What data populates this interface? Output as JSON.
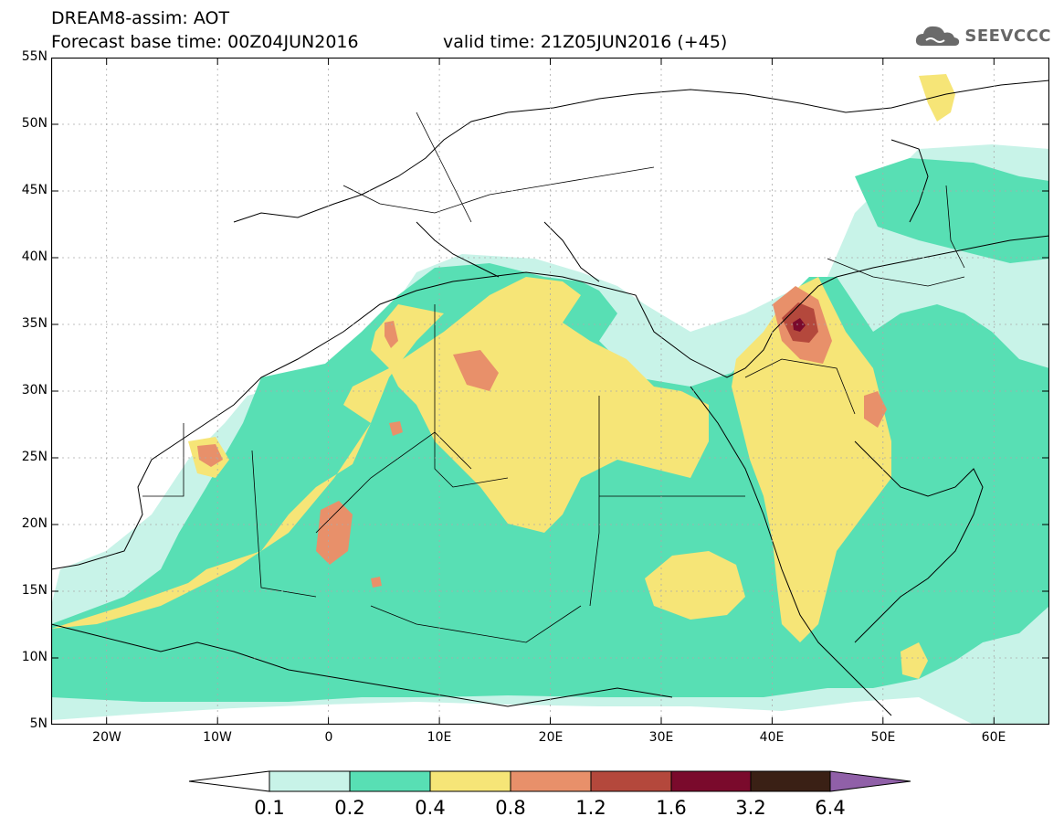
{
  "header": {
    "title_line1": "DREAM8-assim: AOT",
    "title_line2": "Forecast base time: 00Z04JUN2016",
    "valid_time": "valid time: 21Z05JUN2016 (+45)"
  },
  "logo": {
    "text": "SEEVCCC",
    "icon": "cloud-logo-icon"
  },
  "map": {
    "variable": "AOT",
    "lat_labels": [
      "55N",
      "50N",
      "45N",
      "40N",
      "35N",
      "30N",
      "25N",
      "20N",
      "15N",
      "10N",
      "5N"
    ],
    "lon_labels": [
      "20W",
      "10W",
      "0",
      "10E",
      "20E",
      "30E",
      "40E",
      "50E",
      "60E"
    ],
    "extent": {
      "lon_min": -25,
      "lon_max": 65,
      "lat_min": 5,
      "lat_max": 55
    }
  },
  "legend": {
    "labels": [
      "0.1",
      "0.2",
      "0.4",
      "0.8",
      "1.2",
      "1.6",
      "3.2",
      "6.4"
    ],
    "colors": [
      "#c8f3e8",
      "#58dfb4",
      "#f6e577",
      "#e8906a",
      "#b4483c",
      "#7a0a2c",
      "#3a2015",
      "#9060a8"
    ],
    "low_color": "#ffffff"
  }
}
